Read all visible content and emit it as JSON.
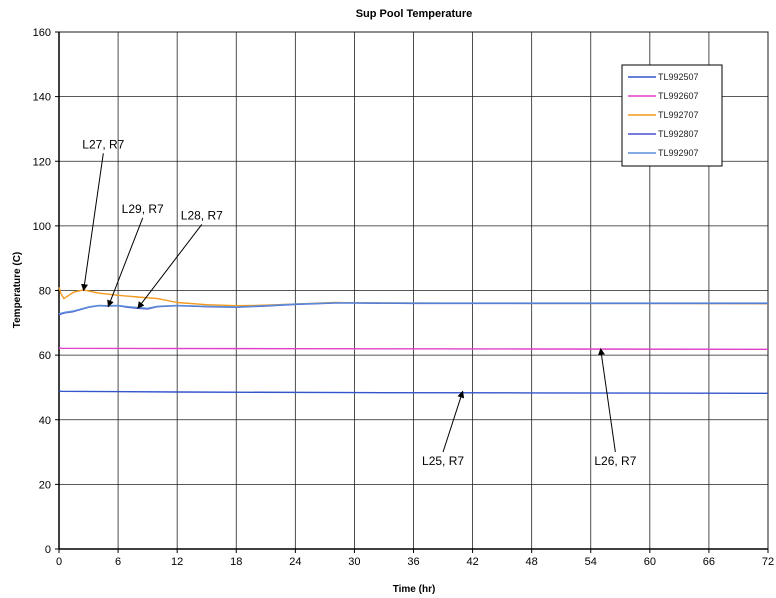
{
  "chart_data": {
    "type": "line",
    "title": "Sup Pool Temperature",
    "xlabel": "Time (hr)",
    "ylabel": "Temperature (C)",
    "xlim": [
      0,
      72
    ],
    "ylim": [
      0,
      160
    ],
    "xticks": [
      0,
      6,
      12,
      18,
      24,
      30,
      36,
      42,
      48,
      54,
      60,
      66,
      72
    ],
    "yticks": [
      0,
      20,
      40,
      60,
      80,
      100,
      120,
      140,
      160
    ],
    "grid": true,
    "legend_position": "top-right",
    "series": [
      {
        "name": "TL992507",
        "color": "#3355cc",
        "points": [
          [
            0,
            49
          ],
          [
            0.2,
            48.8
          ],
          [
            12,
            48.6
          ],
          [
            30,
            48.4
          ],
          [
            48,
            48.3
          ],
          [
            72,
            48.2
          ]
        ]
      },
      {
        "name": "TL992607",
        "color": "#e040c8",
        "points": [
          [
            0,
            62.2
          ],
          [
            0.3,
            62.1
          ],
          [
            24,
            62
          ],
          [
            48,
            61.9
          ],
          [
            72,
            61.8
          ]
        ]
      },
      {
        "name": "TL992707",
        "color": "#f39a1e",
        "points": [
          [
            0,
            81
          ],
          [
            0.2,
            79
          ],
          [
            0.5,
            77.5
          ],
          [
            1,
            78.5
          ],
          [
            1.5,
            79.5
          ],
          [
            2.5,
            80.2
          ],
          [
            4,
            79.2
          ],
          [
            6,
            78.5
          ],
          [
            8,
            78
          ],
          [
            10,
            77.5
          ],
          [
            12,
            76.3
          ],
          [
            15,
            75.6
          ],
          [
            18,
            75.3
          ],
          [
            20,
            75.4
          ],
          [
            24,
            75.8
          ],
          [
            28,
            76.3
          ],
          [
            30,
            76.2
          ],
          [
            36,
            76.1
          ],
          [
            48,
            76
          ],
          [
            60,
            76
          ],
          [
            72,
            75.9
          ]
        ]
      },
      {
        "name": "TL992807",
        "color": "#4a4ed0",
        "points": [
          [
            0,
            72.5
          ],
          [
            0.5,
            73
          ],
          [
            1.5,
            73.5
          ],
          [
            3,
            74.8
          ],
          [
            4,
            75.3
          ],
          [
            5,
            75.2
          ],
          [
            6,
            75.3
          ],
          [
            7,
            74.8
          ],
          [
            8,
            74.5
          ],
          [
            9,
            74.3
          ],
          [
            10,
            75
          ],
          [
            12,
            75.3
          ],
          [
            15,
            75
          ],
          [
            18,
            74.8
          ],
          [
            21,
            75.2
          ],
          [
            24,
            75.7
          ],
          [
            28,
            76.1
          ],
          [
            30,
            76.1
          ],
          [
            36,
            76
          ],
          [
            48,
            76
          ],
          [
            60,
            76
          ],
          [
            72,
            76
          ]
        ]
      },
      {
        "name": "TL992907",
        "color": "#5a8fd8",
        "points": [
          [
            0,
            72.8
          ],
          [
            0.5,
            73.2
          ],
          [
            1.5,
            73.7
          ],
          [
            3,
            74.9
          ],
          [
            4,
            75.4
          ],
          [
            5,
            75.3
          ],
          [
            6,
            75.4
          ],
          [
            7,
            75
          ],
          [
            8,
            74.7
          ],
          [
            9,
            74.5
          ],
          [
            10,
            75.1
          ],
          [
            12,
            75.4
          ],
          [
            15,
            75.1
          ],
          [
            18,
            74.9
          ],
          [
            21,
            75.3
          ],
          [
            24,
            75.8
          ],
          [
            28,
            76.2
          ],
          [
            30,
            76.2
          ],
          [
            36,
            76.1
          ],
          [
            48,
            76.1
          ],
          [
            60,
            76.1
          ],
          [
            72,
            76.1
          ]
        ]
      }
    ],
    "annotations": [
      {
        "text": "L27, R7",
        "label_at": [
          4.5,
          124
        ],
        "arrow_to": [
          2.5,
          80
        ]
      },
      {
        "text": "L29, R7",
        "label_at": [
          8.5,
          104
        ],
        "arrow_to": [
          5,
          75
        ]
      },
      {
        "text": "L28, R7",
        "label_at": [
          14.5,
          102
        ],
        "arrow_to": [
          8,
          74.5
        ]
      },
      {
        "text": "L25, R7",
        "label_at": [
          39,
          26
        ],
        "arrow_to": [
          41,
          48.8
        ]
      },
      {
        "text": "L26, R7",
        "label_at": [
          56.5,
          26
        ],
        "arrow_to": [
          55,
          62
        ]
      }
    ]
  }
}
